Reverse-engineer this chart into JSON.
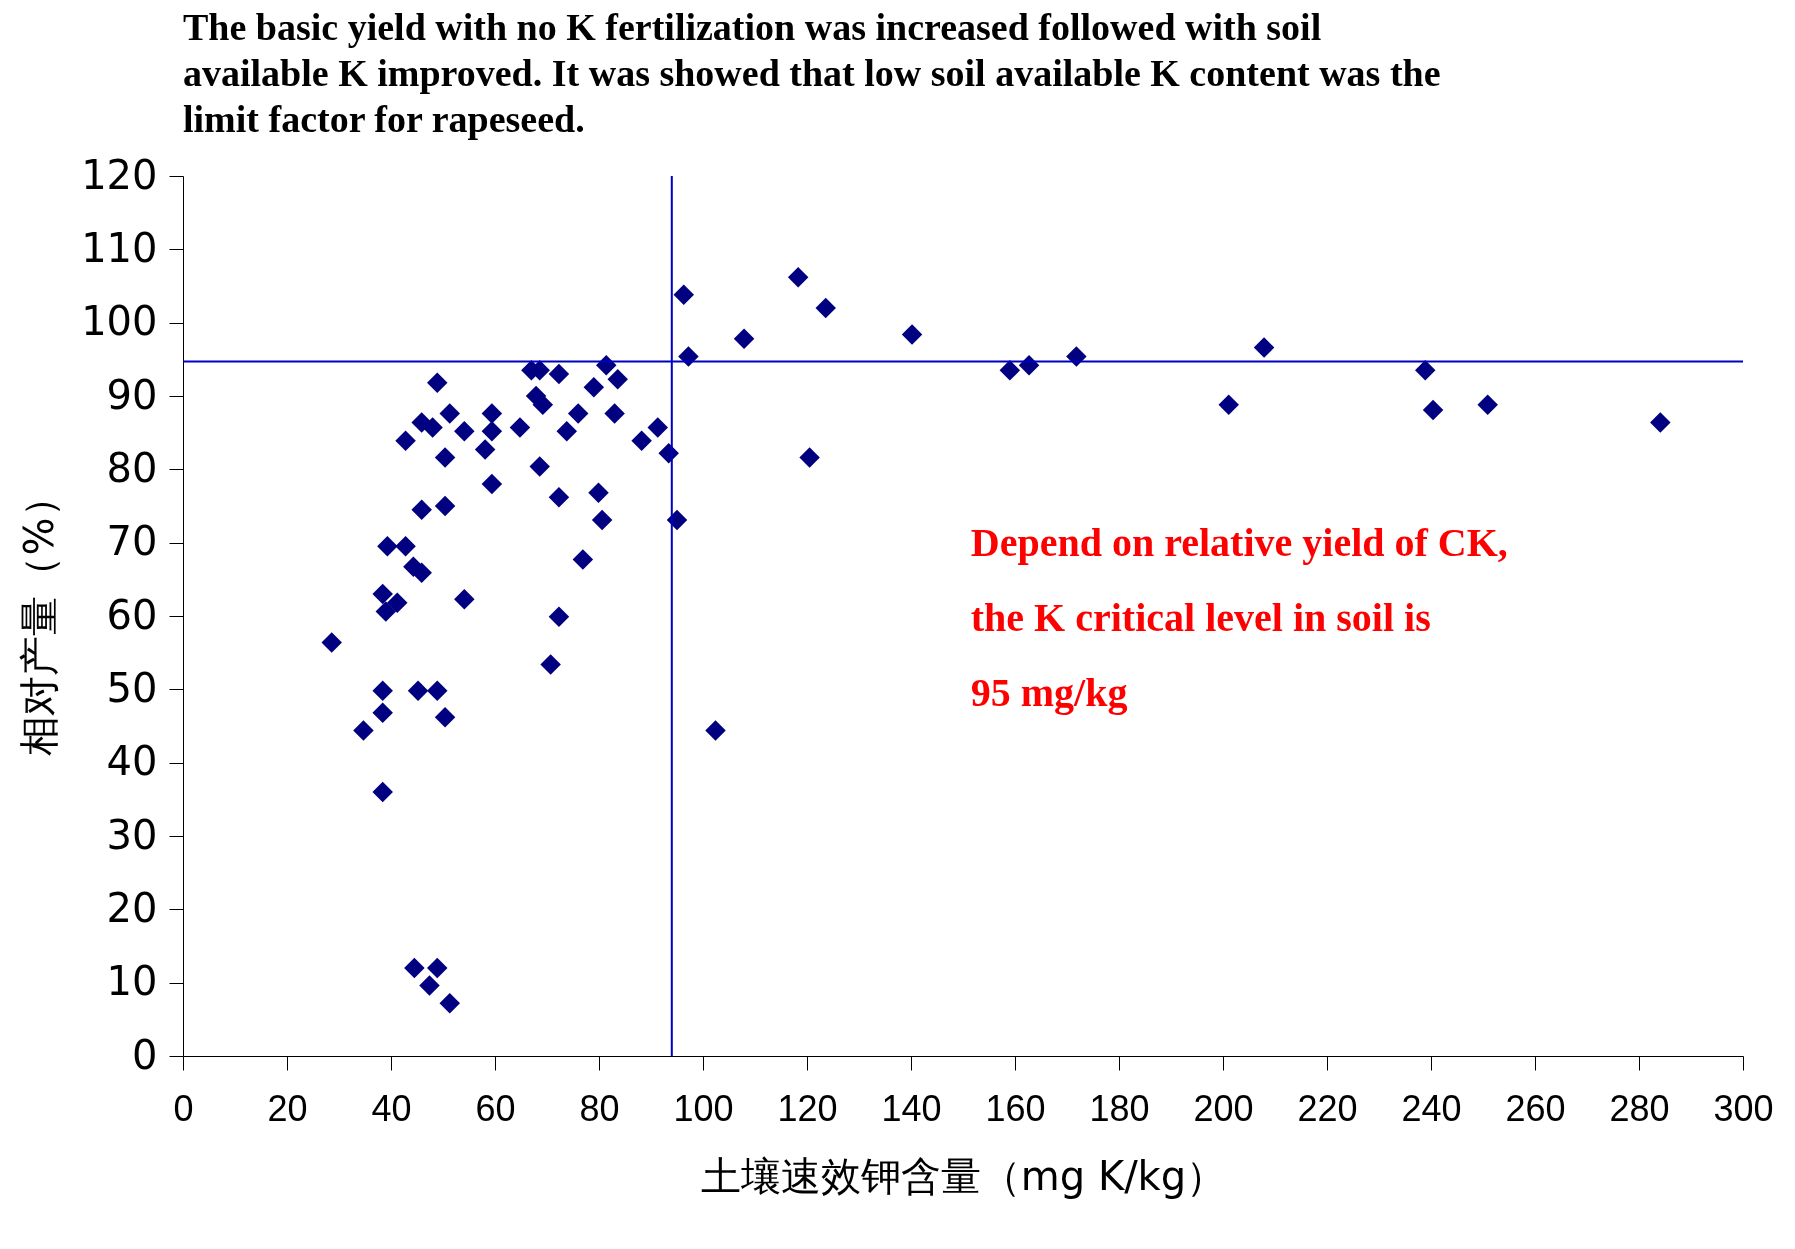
{
  "chart_data": {
    "type": "scatter",
    "title": "The basic yield with no K fertilization was increased followed with soil available K improved. It was showed that low soil available K content was the limit factor for rapeseed.",
    "xlabel": "土壤速效钾含量（mg K/kg）",
    "ylabel": "相对产量（%）",
    "annotations": [
      "Depend on relative yield of CK, the K critical level in soil is 95 mg/kg"
    ],
    "series": [
      {
        "color": "#000080",
        "x": [
          28.6,
          34.7,
          38.4,
          38.4,
          38.4,
          38.4,
          39,
          39.3,
          41.2,
          42.8,
          42.8,
          44.3,
          45.9,
          45.9,
          45.9,
          45.2,
          44.5,
          47.4,
          48.9,
          51.3,
          48,
          48.9,
          48.9,
          50.4,
          50.4,
          50.4,
          51.3,
          54.1,
          54.1,
          58.1,
          59.4,
          59.4,
          59.4,
          64.8,
          67,
          68.6,
          67.9,
          69.2,
          68.6,
          70.7,
          72.3,
          72.3,
          72.3,
          73.8,
          76,
          76.9,
          79,
          79.9,
          80.6,
          81.4,
          83,
          83.6,
          88.2,
          91.3,
          93.4,
          95,
          96.3,
          97.2,
          102.4,
          107.9,
          118.3,
          120.5,
          123.6,
          140.2,
          159,
          162.7,
          171.8,
          201.1,
          207.9,
          238.9,
          240.4,
          250.9,
          284.1
        ],
        "values": [
          56.4,
          44.4,
          36,
          46.8,
          49.8,
          63,
          60.6,
          69.5,
          61.8,
          69.5,
          83.9,
          66.7,
          65.9,
          74.5,
          86.4,
          49.8,
          12,
          9.6,
          12,
          7.2,
          85.7,
          91.8,
          49.8,
          46.2,
          81.6,
          75,
          87.6,
          85.2,
          62.3,
          82.7,
          87.6,
          85.2,
          78,
          85.7,
          93.5,
          93.5,
          90,
          88.8,
          80.4,
          53.4,
          93,
          76.2,
          59.9,
          85.2,
          87.6,
          67.7,
          91.2,
          76.8,
          73.1,
          94.2,
          87.6,
          92.3,
          83.9,
          85.7,
          82.2,
          73.1,
          103.8,
          95.4,
          44.4,
          97.8,
          106.2,
          81.6,
          102,
          98.4,
          93.5,
          94.2,
          95.4,
          88.8,
          96.6,
          93.5,
          88.1,
          88.8,
          86.4
        ]
      }
    ],
    "marker": "diamond",
    "xlim": [
      0,
      300
    ],
    "xticks": [
      0,
      20,
      40,
      60,
      80,
      100,
      120,
      140,
      160,
      180,
      200,
      220,
      240,
      260,
      280,
      300
    ],
    "ylim": [
      0,
      120
    ],
    "yticks": [
      0,
      10,
      20,
      30,
      40,
      50,
      60,
      70,
      80,
      90,
      100,
      110,
      120
    ],
    "ref_lines": [
      {
        "axis": "x",
        "value": 94,
        "color": "#0000c0"
      },
      {
        "axis": "y",
        "value": 94.7,
        "color": "#0000c0"
      }
    ],
    "grid": false,
    "legend": false
  }
}
